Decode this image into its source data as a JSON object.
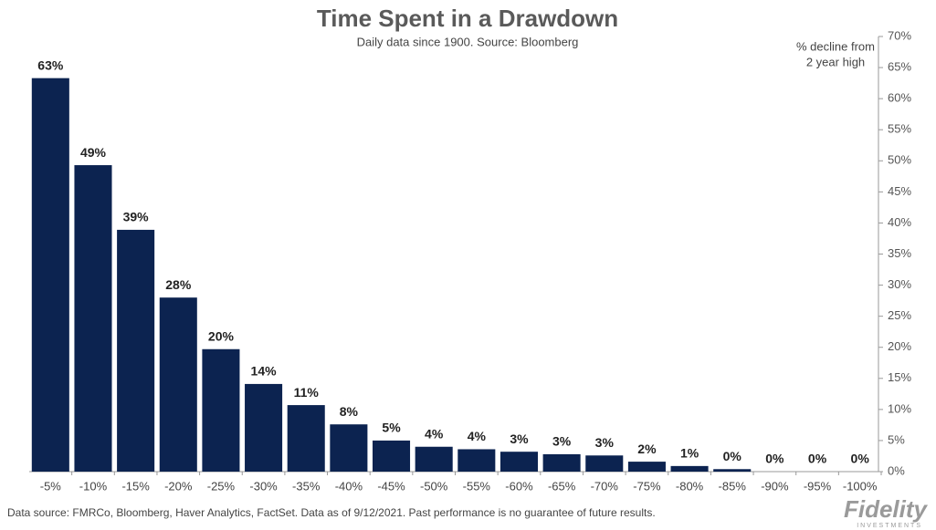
{
  "chart_data": {
    "type": "bar",
    "title": "Time Spent in a Drawdown",
    "subtitle": "Daily data since 1900.  Source: Bloomberg",
    "y_axis_label": [
      "% decline from",
      "2 year high"
    ],
    "categories": [
      "-5%",
      "-10%",
      "-15%",
      "-20%",
      "-25%",
      "-30%",
      "-35%",
      "-40%",
      "-45%",
      "-50%",
      "-55%",
      "-60%",
      "-65%",
      "-70%",
      "-75%",
      "-80%",
      "-85%",
      "-90%",
      "-95%",
      "-100%"
    ],
    "values": [
      63.3,
      49.3,
      38.9,
      28.0,
      19.7,
      14.1,
      10.7,
      7.6,
      5.0,
      4.0,
      3.6,
      3.2,
      2.8,
      2.6,
      1.6,
      0.9,
      0.4,
      0,
      0,
      0
    ],
    "value_labels": [
      "63%",
      "49%",
      "39%",
      "28%",
      "20%",
      "14%",
      "11%",
      "8%",
      "5%",
      "4%",
      "4%",
      "3%",
      "3%",
      "3%",
      "2%",
      "1%",
      "0%",
      "0%",
      "0%",
      "0%"
    ],
    "color": "#0c2350",
    "ylim": [
      0,
      70
    ],
    "yticks": [
      {
        "value": 0,
        "label": "0%"
      },
      {
        "value": 5,
        "label": "5%"
      },
      {
        "value": 10,
        "label": "10%"
      },
      {
        "value": 15,
        "label": "15%"
      },
      {
        "value": 20,
        "label": "20%"
      },
      {
        "value": 25,
        "label": "25%"
      },
      {
        "value": 30,
        "label": "30%"
      },
      {
        "value": 35,
        "label": "35%"
      },
      {
        "value": 40,
        "label": "40%"
      },
      {
        "value": 45,
        "label": "45%"
      },
      {
        "value": 50,
        "label": "50%"
      },
      {
        "value": 55,
        "label": "55%"
      },
      {
        "value": 60,
        "label": "60%"
      },
      {
        "value": 65,
        "label": "65%"
      },
      {
        "value": 70,
        "label": "70%"
      }
    ],
    "y_axis_side": "right",
    "grid": false,
    "footnote": "Data source: FMRCo, Bloomberg, Haver Analytics, FactSet. Data as of 9/12/2021. Past performance is no guarantee of future results.",
    "brand": "Fidelity",
    "brand_subtitle": "INVESTMENTS"
  }
}
